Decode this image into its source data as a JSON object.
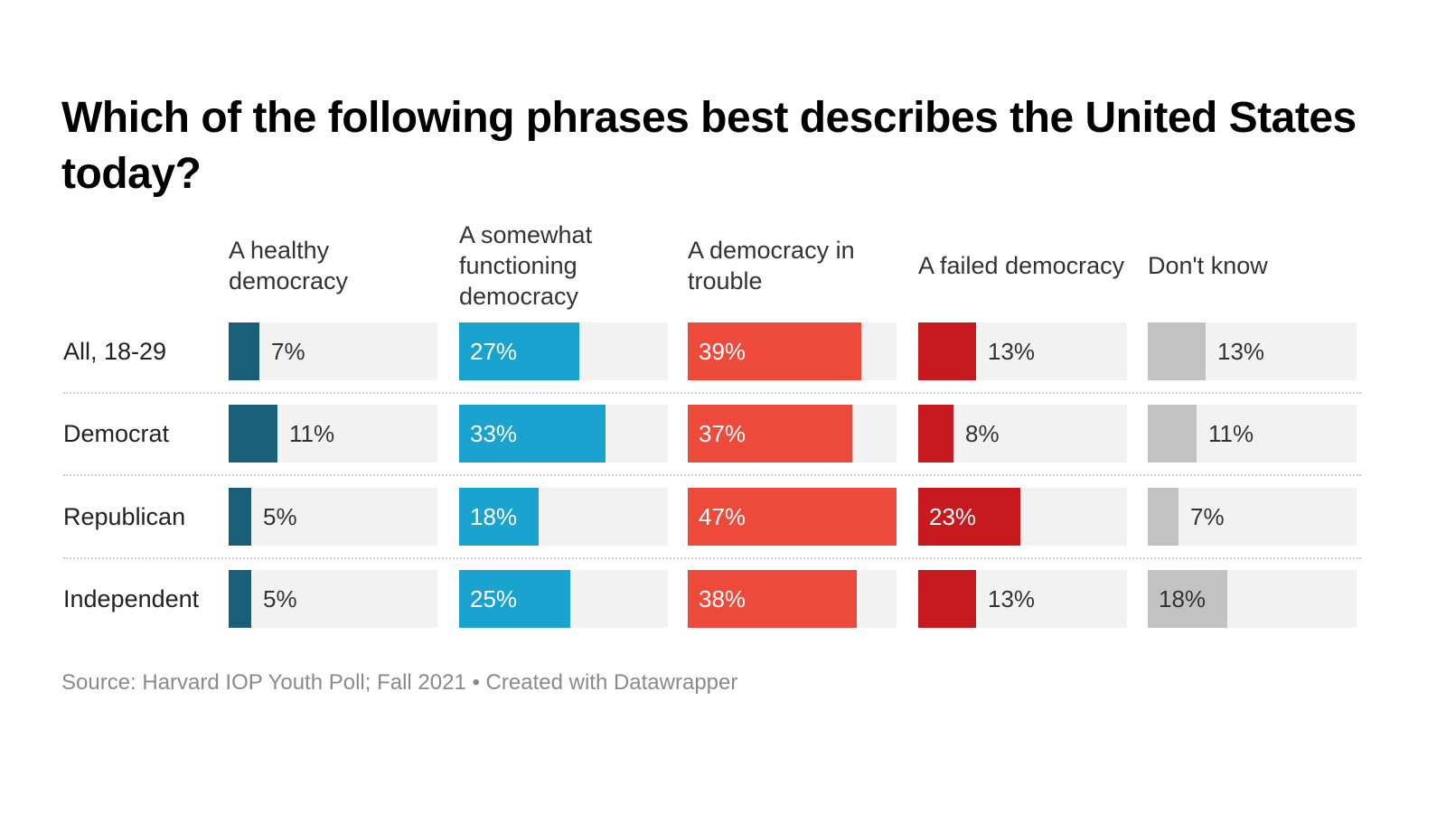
{
  "chart_data": {
    "type": "bar",
    "subtype": "small-multiples-horizontal",
    "title": "Which of the following phrases best describes the United States today?",
    "categories": [
      "All, 18-29",
      "Democrat",
      "Republican",
      "Independent"
    ],
    "series": [
      {
        "name": "A healthy democracy",
        "color": "#1a5f7a",
        "label_color_inside": "#ffffff",
        "values": [
          7,
          11,
          5,
          5
        ],
        "labels": [
          "7%",
          "11%",
          "5%",
          "5%"
        ]
      },
      {
        "name": "A somewhat functioning democracy",
        "color": "#1ba3d0",
        "label_color_inside": "#ffffff",
        "values": [
          27,
          33,
          18,
          25
        ],
        "labels": [
          "27%",
          "33%",
          "18%",
          "25%"
        ]
      },
      {
        "name": "A democracy in trouble",
        "color": "#ee4a3c",
        "label_color_inside": "#ffffff",
        "values": [
          39,
          37,
          47,
          38
        ],
        "labels": [
          "39%",
          "37%",
          "47%",
          "38%"
        ]
      },
      {
        "name": "A failed democracy",
        "color": "#c71a1e",
        "label_color_inside": "#ffffff",
        "values": [
          13,
          8,
          23,
          13
        ],
        "labels": [
          "13%",
          "8%",
          "23%",
          "13%"
        ]
      },
      {
        "name": "Don't know",
        "color": "#c2c2c2",
        "label_color_inside": "#333333",
        "values": [
          13,
          11,
          7,
          18
        ],
        "labels": [
          "13%",
          "11%",
          "7%",
          "18%"
        ]
      }
    ],
    "xlim": [
      0,
      47
    ],
    "xlabel": "",
    "ylabel": "",
    "grid": false,
    "legend": "column-headers",
    "source": "Source: Harvard IOP Youth Poll; Fall 2021 • Created with Datawrapper"
  }
}
